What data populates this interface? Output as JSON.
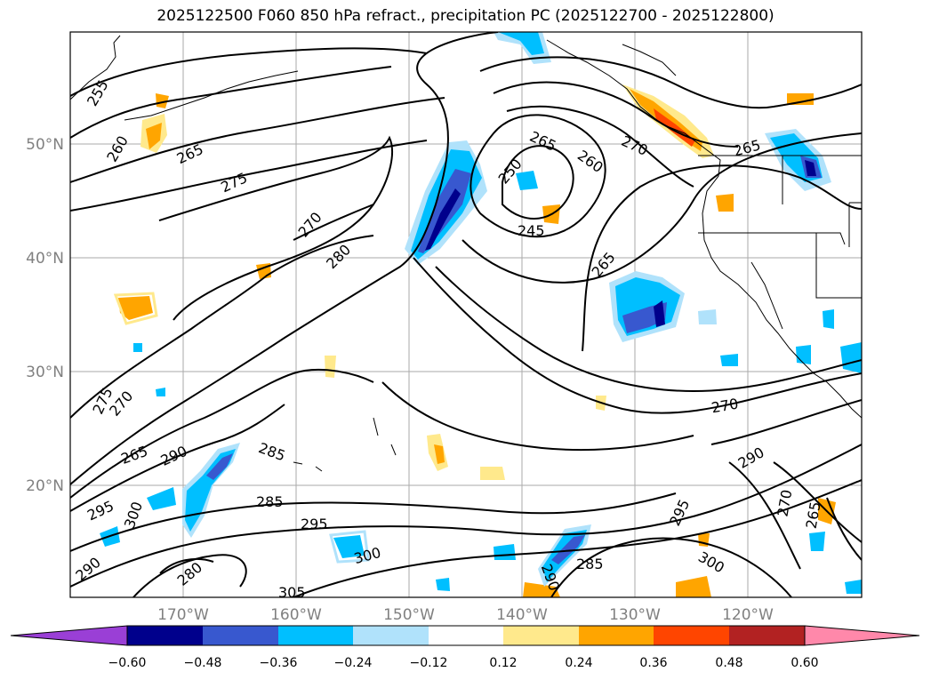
{
  "title": "2025122500 F060 850 hPa refract., precipitation PC (2025122700 - 2025122800)",
  "axes": {
    "lat_labels": [
      "50°N",
      "40°N",
      "30°N",
      "20°N"
    ],
    "lon_labels": [
      "170°W",
      "160°W",
      "150°W",
      "140°W",
      "130°W",
      "120°W"
    ]
  },
  "contour_labels": [
    "255",
    "260",
    "265",
    "275",
    "270",
    "280",
    "250",
    "245",
    "265",
    "260",
    "270",
    "265",
    "265",
    "275",
    "270",
    "265",
    "290",
    "285",
    "285",
    "295",
    "295",
    "300",
    "290",
    "280",
    "300",
    "305",
    "285",
    "290",
    "295",
    "300",
    "290",
    "270",
    "265",
    "270"
  ],
  "colorbar": {
    "ticks": [
      "−0.60",
      "−0.48",
      "−0.36",
      "−0.24",
      "−0.12",
      "0.12",
      "0.24",
      "0.36",
      "0.48",
      "0.60"
    ],
    "colors": [
      "#9a3fd6",
      "#00008c",
      "#3858cf",
      "#00bfff",
      "#b0e2fb",
      "#ffffff",
      "#ffe98c",
      "#ffa500",
      "#ff4500",
      "#b22222",
      "#ff88aa"
    ]
  },
  "colors": {
    "contour": "#000000",
    "coast": "#000000",
    "grid": "#aaaaaa",
    "pos1": "#ffe98c",
    "pos2": "#ffa500",
    "pos3": "#ff4500",
    "neg1": "#b0e2fb",
    "neg2": "#00bfff",
    "neg3": "#3858cf",
    "neg4": "#00008c"
  }
}
